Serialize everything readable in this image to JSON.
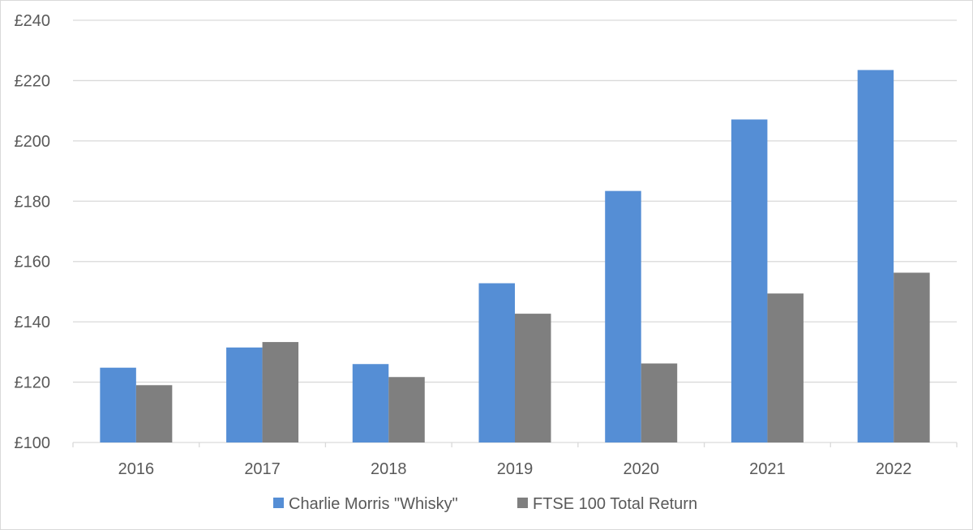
{
  "chart_data": {
    "type": "bar",
    "title": "",
    "xlabel": "",
    "ylabel": "",
    "categories": [
      "2016",
      "2017",
      "2018",
      "2019",
      "2020",
      "2021",
      "2022"
    ],
    "series": [
      {
        "name": "Charlie Morris \"Whisky\"",
        "color": "#558ed5",
        "values": [
          124.8,
          131.5,
          126.0,
          152.8,
          183.4,
          207.1,
          223.5
        ]
      },
      {
        "name": "FTSE 100 Total Return",
        "color": "#7f7f7f",
        "values": [
          119.0,
          133.3,
          121.7,
          142.7,
          126.2,
          149.4,
          156.3
        ]
      }
    ],
    "ylim": [
      100,
      240
    ],
    "yticks": [
      "£100",
      "£120",
      "£140",
      "£160",
      "£180",
      "£200",
      "£220",
      "£240"
    ],
    "ytick_values": [
      100,
      120,
      140,
      160,
      180,
      200,
      220,
      240
    ],
    "grid": true,
    "legend_position": "bottom"
  }
}
